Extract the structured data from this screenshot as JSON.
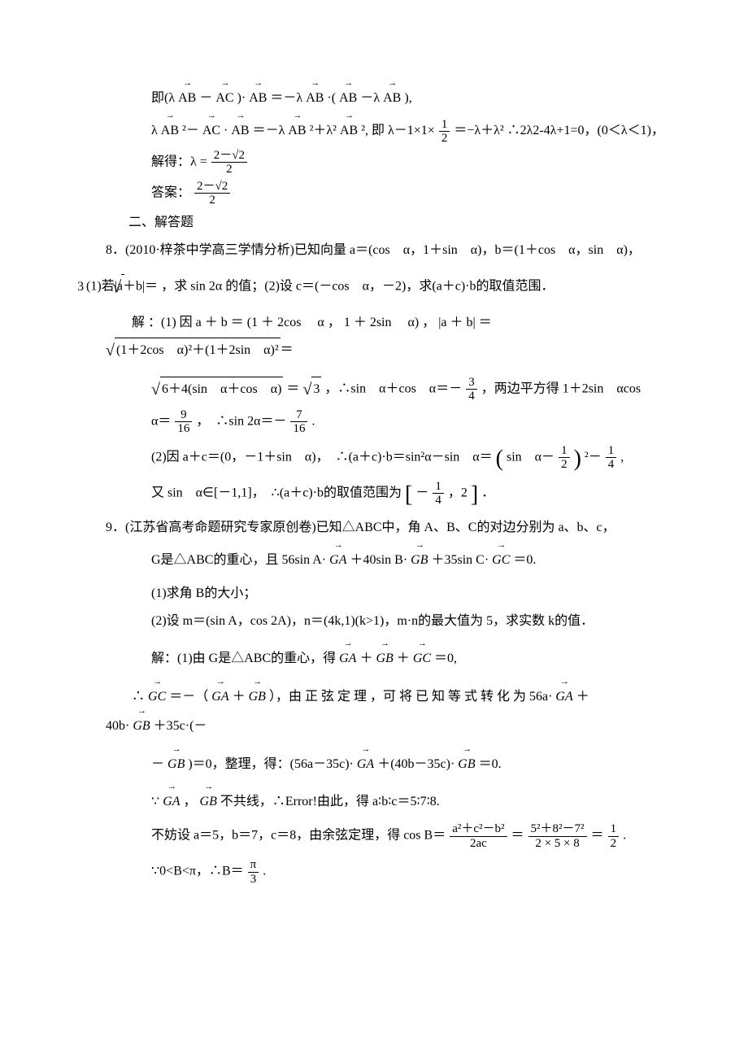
{
  "lines": {
    "l1_pre": "即(λ ",
    "l1_vec1": "AB",
    "l1_mid1": "－",
    "l1_vec2": "AC",
    "l1_mid2": ")·",
    "l1_vec3": "AB",
    "l1_mid3": "＝－λ ",
    "l1_vec4": "AB",
    "l1_mid4": "·(",
    "l1_vec5": "AB",
    "l1_mid5": "－λ ",
    "l1_vec6": "AB",
    "l1_post": "),",
    "l2_pre": "λ ",
    "l2_v1": "AB",
    "l2_m1": "²－",
    "l2_v2": "AC",
    "l2_m2": "·",
    "l2_v3": "AB",
    "l2_m3": "＝－λ ",
    "l2_v4": "AB",
    "l2_m4": "²＋λ² ",
    "l2_v5": "AB",
    "l2_m5": "², 即 λ－1×1×",
    "l2_f1n": "1",
    "l2_f1d": "2",
    "l2_m6": "＝−λ＋λ²",
    "l2_post": "∴2λ2-4λ+1=0，(0＜λ＜1)，",
    "l3_pre": "解得：λ =",
    "l3_num": "2－√2",
    "l3_den": "2",
    "l4_pre": "答案：",
    "l4_num": "2－√2",
    "l4_den": "2",
    "sect": "二、解答题",
    "q8_a": "8．(2010·梓茶中学高三学情分析)已知向量 a＝(cos　α，1＋sin　α)，b＝(1＋cos　α，sin　α)，",
    "q8_b_pre": "(1)若|a＋b|＝",
    "q8_b_rad": "3",
    "q8_b_post": "，求 sin 2α 的值；(2)设 c＝(－cos　α，－2)，求(a＋c)·b的取值范围．",
    "q8_sol1_a": "解 ：(1) 因 a ＋ b ＝ (1 ＋ 2cos 　α ， 1 ＋ 2sin 　α) ， |a ＋ b| ＝",
    "q8_sol1_rad": "(1＋2cos　α)²＋(1＋2sin　α)²",
    "q8_sol1_eq": "＝",
    "q8_sol2_rad": "6＋4(sin　α＋cos　α)",
    "q8_sol2_eq1": "＝",
    "q8_sol2_r2": "3",
    "q8_sol2_mid": "，∴sin　α＋cos　α＝－",
    "q8_sol2_f1n": "3",
    "q8_sol2_f1d": "4",
    "q8_sol2_post": "，两边平方得 1＋2sin　αcos",
    "q8_sol3_pre": "α＝",
    "q8_sol3_f1n": "9",
    "q8_sol3_f1d": "16",
    "q8_sol3_mid": "，　∴sin 2α＝－",
    "q8_sol3_f2n": "7",
    "q8_sol3_f2d": "16",
    "q8_sol3_post": ".",
    "q8_p2_pre": "(2)因 a＋c＝(0，－1＋sin　α)，　∴(a＋c)·b＝sin²α－sin　α＝",
    "q8_p2_bo": "(",
    "q8_p2_mid": "sin　α－",
    "q8_p2_f1n": "1",
    "q8_p2_f1d": "2",
    "q8_p2_bc": ")",
    "q8_p2_sq": "²－",
    "q8_p2_f2n": "1",
    "q8_p2_f2d": "4",
    "q8_p2_post": ",",
    "q8_p3_pre": "又 sin　α∈[－1,1]，　∴(a＋c)·b的取值范围为",
    "q8_p3_bo": "[",
    "q8_p3_mid1": "－",
    "q8_p3_f1n": "1",
    "q8_p3_f1d": "4",
    "q8_p3_mid2": "，2",
    "q8_p3_bc": "]",
    "q8_p3_post": "．",
    "q9_a": "9．(江苏省高考命题研究专家原创卷)已知△ABC中，角 A、B、C的对边分别为 a、b、c，",
    "q9_b_pre": "G是△ABC的重心，且 56sin A·",
    "q9_b_v1": "GA",
    "q9_b_m1": "＋40sin B·",
    "q9_b_v2": "GB",
    "q9_b_m2": "＋35sin C·",
    "q9_b_v3": "GC",
    "q9_b_post": "＝0.",
    "q9_c": "(1)求角 B的大小；",
    "q9_d": "(2)设 m＝(sin A，cos 2A)，n＝(4k,1)(k>1)，m·n的最大值为 5，求实数 k的值．",
    "q9_s1_pre": "解：(1)由 G是△ABC的重心，得",
    "q9_s1_v1": "GA",
    "q9_s1_m1": "＋",
    "q9_s1_v2": "GB",
    "q9_s1_m2": "＋",
    "q9_s1_v3": "GC",
    "q9_s1_post": "＝0,",
    "q9_s2_pre": "∴",
    "q9_s2_v1": "GC",
    "q9_s2_m1": "＝－（",
    "q9_s2_v2": "GA",
    "q9_s2_m2": "＋",
    "q9_s2_v3": "GB",
    "q9_s2_m3": "），由 正 弦 定 理 ，可 将 已 知 等 式 转 化 为 56a·",
    "q9_s2_v4": "GA",
    "q9_s2_post": "＋",
    "q9_s2b_pre": "40b·",
    "q9_s2b_v1": "GB",
    "q9_s2b_m1": "＋35c·(－",
    "q9_s2c_pre": "－",
    "q9_s2c_v1": "GB",
    "q9_s2c_m1": ")＝0，整理，得：(56a－35c)·",
    "q9_s2c_v2": "GA",
    "q9_s2c_m2": "＋(40b－35c)·",
    "q9_s2c_v3": "GB",
    "q9_s2c_post": "＝0.",
    "q9_s3_pre": "∵",
    "q9_s3_v1": "GA",
    "q9_s3_m1": "，",
    "q9_s3_v2": "GB",
    "q9_s3_post": "不共线，∴Error!由此，得 a∶b∶c＝5∶7∶8.",
    "q9_s4_pre": "不妨设 a＝5，b＝7，c＝8，由余弦定理，得 cos B＝",
    "q9_s4_f1n": "a²＋c²－b²",
    "q9_s4_f1d": "2ac",
    "q9_s4_m1": "＝",
    "q9_s4_f2n": "5²＋8²－7²",
    "q9_s4_f2d": "2 × 5 × 8",
    "q9_s4_m2": "＝",
    "q9_s4_f3n": "1",
    "q9_s4_f3d": "2",
    "q9_s4_post": ".",
    "q9_s5_pre": "∵0<B<π，∴B＝",
    "q9_s5_n": "π",
    "q9_s5_d": "3",
    "q9_s5_post": "."
  }
}
